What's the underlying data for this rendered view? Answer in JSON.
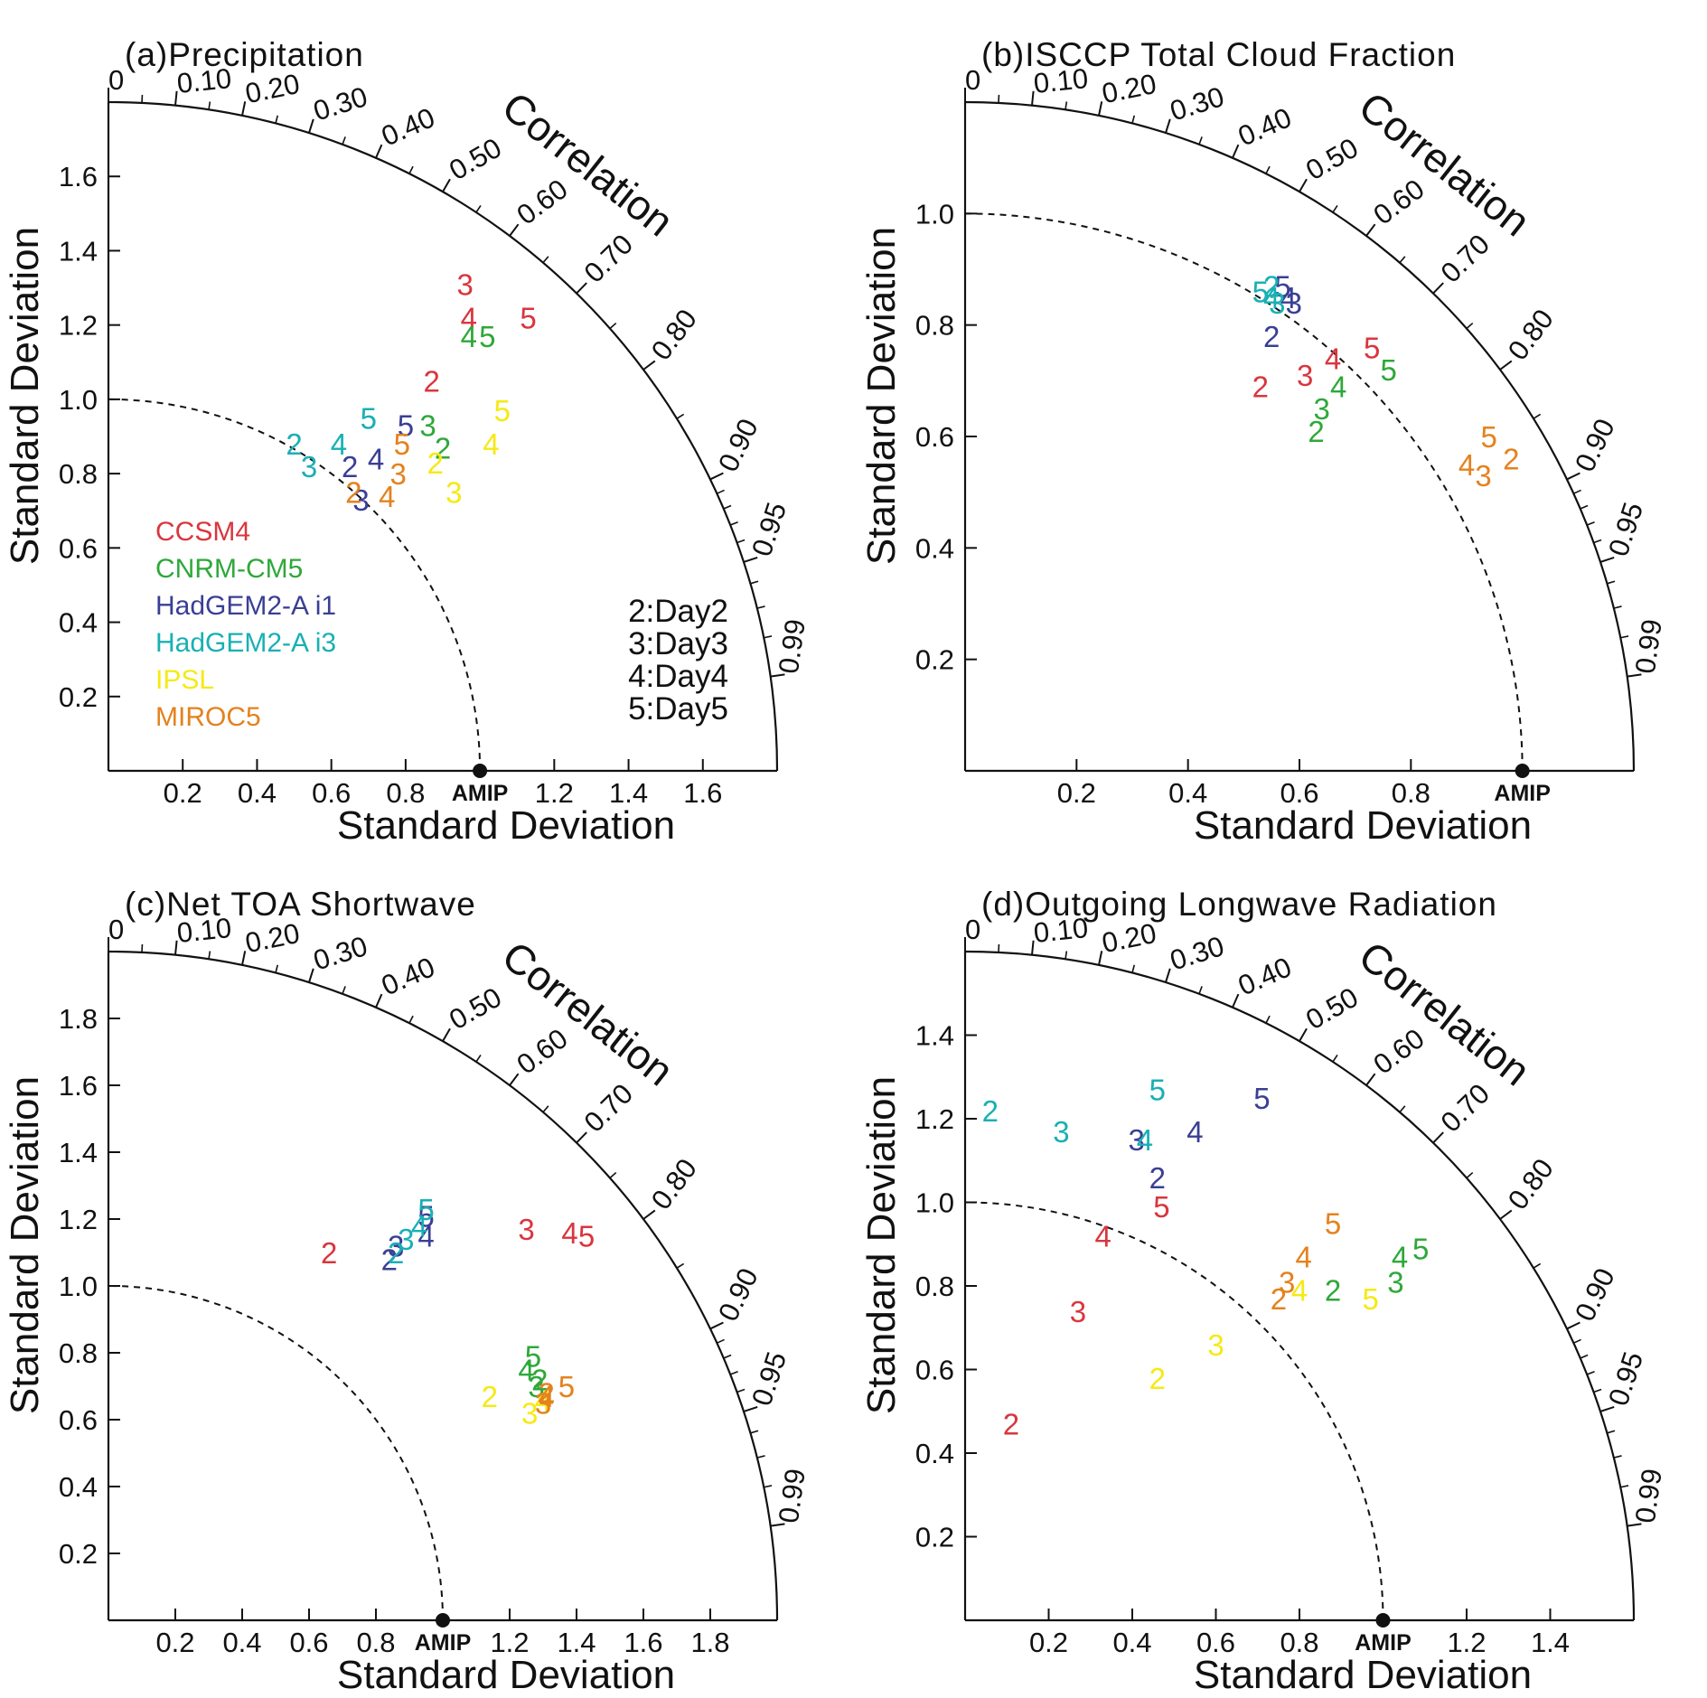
{
  "model_colors": {
    "CCSM4": "#d9363e",
    "CNRM-CM5": "#2ea83a",
    "HadGEM2-A i1": "#3a3f94",
    "HadGEM2-A i3": "#19b0b4",
    "IPSL": "#f5ea14",
    "MIROC5": "#e4821e"
  },
  "legend": {
    "models": [
      "CCSM4",
      "CNRM-CM5",
      "HadGEM2-A i1",
      "HadGEM2-A i3",
      "IPSL",
      "MIROC5"
    ],
    "days": [
      "2:Day2",
      "3:Day3",
      "4:Day4",
      "5:Day5"
    ]
  },
  "chart_data": [
    {
      "type": "scatter",
      "subtype": "taylor-diagram",
      "title": "(a)Precipitation",
      "xlabel": "Standard Deviation",
      "ylabel": "Standard Deviation",
      "arc_label": "Correlation",
      "reference_label": "AMIP",
      "reference_std": 1.0,
      "max_std": 1.8,
      "x_ticks": [
        "0.2",
        "0.4",
        "0.6",
        "0.8",
        "1.2",
        "1.4",
        "1.6"
      ],
      "y_ticks": [
        "0.2",
        "0.4",
        "0.6",
        "0.8",
        "1.0",
        "1.2",
        "1.4",
        "1.6"
      ],
      "correlation_ticks": [
        "0",
        "0.10",
        "0.20",
        "0.30",
        "0.40",
        "0.50",
        "0.60",
        "0.70",
        "0.80",
        "0.90",
        "0.95",
        "0.99"
      ],
      "show_legend": true,
      "points": [
        {
          "model": "CCSM4",
          "label": "2",
          "x": 0.87,
          "y": 1.05
        },
        {
          "model": "CCSM4",
          "label": "3",
          "x": 0.96,
          "y": 1.31
        },
        {
          "model": "CCSM4",
          "label": "4",
          "x": 0.97,
          "y": 1.22
        },
        {
          "model": "CCSM4",
          "label": "5",
          "x": 1.13,
          "y": 1.22
        },
        {
          "model": "CNRM-CM5",
          "label": "2",
          "x": 0.9,
          "y": 0.87
        },
        {
          "model": "CNRM-CM5",
          "label": "3",
          "x": 0.86,
          "y": 0.93
        },
        {
          "model": "CNRM-CM5",
          "label": "4",
          "x": 0.97,
          "y": 1.17
        },
        {
          "model": "CNRM-CM5",
          "label": "5",
          "x": 1.02,
          "y": 1.17
        },
        {
          "model": "HadGEM2-A i1",
          "label": "2",
          "x": 0.65,
          "y": 0.82
        },
        {
          "model": "HadGEM2-A i1",
          "label": "3",
          "x": 0.68,
          "y": 0.73
        },
        {
          "model": "HadGEM2-A i1",
          "label": "4",
          "x": 0.72,
          "y": 0.84
        },
        {
          "model": "HadGEM2-A i1",
          "label": "5",
          "x": 0.8,
          "y": 0.93
        },
        {
          "model": "HadGEM2-A i3",
          "label": "2",
          "x": 0.5,
          "y": 0.88
        },
        {
          "model": "HadGEM2-A i3",
          "label": "3",
          "x": 0.54,
          "y": 0.82
        },
        {
          "model": "HadGEM2-A i3",
          "label": "4",
          "x": 0.62,
          "y": 0.88
        },
        {
          "model": "HadGEM2-A i3",
          "label": "5",
          "x": 0.7,
          "y": 0.95
        },
        {
          "model": "IPSL",
          "label": "2",
          "x": 0.88,
          "y": 0.83
        },
        {
          "model": "IPSL",
          "label": "3",
          "x": 0.93,
          "y": 0.75
        },
        {
          "model": "IPSL",
          "label": "4",
          "x": 1.03,
          "y": 0.88
        },
        {
          "model": "IPSL",
          "label": "5",
          "x": 1.06,
          "y": 0.97
        },
        {
          "model": "MIROC5",
          "label": "2",
          "x": 0.66,
          "y": 0.75
        },
        {
          "model": "MIROC5",
          "label": "3",
          "x": 0.78,
          "y": 0.8
        },
        {
          "model": "MIROC5",
          "label": "4",
          "x": 0.75,
          "y": 0.74
        },
        {
          "model": "MIROC5",
          "label": "5",
          "x": 0.79,
          "y": 0.88
        }
      ]
    },
    {
      "type": "scatter",
      "subtype": "taylor-diagram",
      "title": "(b)ISCCP Total Cloud Fraction",
      "xlabel": "Standard Deviation",
      "ylabel": "Standard Deviation",
      "arc_label": "Correlation",
      "reference_label": "AMIP",
      "reference_std": 1.0,
      "max_std": 1.2,
      "x_ticks": [
        "0.2",
        "0.4",
        "0.6",
        "0.8"
      ],
      "y_ticks": [
        "0.2",
        "0.4",
        "0.6",
        "0.8",
        "1.0"
      ],
      "correlation_ticks": [
        "0",
        "0.10",
        "0.20",
        "0.30",
        "0.40",
        "0.50",
        "0.60",
        "0.70",
        "0.80",
        "0.90",
        "0.95",
        "0.99"
      ],
      "show_legend": false,
      "points": [
        {
          "model": "CCSM4",
          "label": "2",
          "x": 0.53,
          "y": 0.69
        },
        {
          "model": "CCSM4",
          "label": "3",
          "x": 0.61,
          "y": 0.71
        },
        {
          "model": "CCSM4",
          "label": "4",
          "x": 0.66,
          "y": 0.74
        },
        {
          "model": "CCSM4",
          "label": "5",
          "x": 0.73,
          "y": 0.76
        },
        {
          "model": "CNRM-CM5",
          "label": "2",
          "x": 0.63,
          "y": 0.61
        },
        {
          "model": "CNRM-CM5",
          "label": "3",
          "x": 0.64,
          "y": 0.65
        },
        {
          "model": "CNRM-CM5",
          "label": "4",
          "x": 0.67,
          "y": 0.69
        },
        {
          "model": "CNRM-CM5",
          "label": "5",
          "x": 0.76,
          "y": 0.72
        },
        {
          "model": "HadGEM2-A i1",
          "label": "2",
          "x": 0.55,
          "y": 0.78
        },
        {
          "model": "HadGEM2-A i1",
          "label": "3",
          "x": 0.59,
          "y": 0.84
        },
        {
          "model": "HadGEM2-A i1",
          "label": "4",
          "x": 0.58,
          "y": 0.85
        },
        {
          "model": "HadGEM2-A i1",
          "label": "5",
          "x": 0.57,
          "y": 0.87
        },
        {
          "model": "HadGEM2-A i3",
          "label": "2",
          "x": 0.55,
          "y": 0.87
        },
        {
          "model": "HadGEM2-A i3",
          "label": "3",
          "x": 0.56,
          "y": 0.84
        },
        {
          "model": "HadGEM2-A i3",
          "label": "4",
          "x": 0.55,
          "y": 0.85
        },
        {
          "model": "HadGEM2-A i3",
          "label": "5",
          "x": 0.53,
          "y": 0.86
        },
        {
          "model": "MIROC5",
          "label": "2",
          "x": 0.98,
          "y": 0.56
        },
        {
          "model": "MIROC5",
          "label": "3",
          "x": 0.93,
          "y": 0.53
        },
        {
          "model": "MIROC5",
          "label": "4",
          "x": 0.9,
          "y": 0.55
        },
        {
          "model": "MIROC5",
          "label": "5",
          "x": 0.94,
          "y": 0.6
        }
      ]
    },
    {
      "type": "scatter",
      "subtype": "taylor-diagram",
      "title": "(c)Net TOA Shortwave",
      "xlabel": "Standard Deviation",
      "ylabel": "Standard Deviation",
      "arc_label": "Correlation",
      "reference_label": "AMIP",
      "reference_std": 1.0,
      "max_std": 2.0,
      "x_ticks": [
        "0.2",
        "0.4",
        "0.6",
        "0.8",
        "1.2",
        "1.4",
        "1.6",
        "1.8"
      ],
      "y_ticks": [
        "0.2",
        "0.4",
        "0.6",
        "0.8",
        "1.0",
        "1.2",
        "1.4",
        "1.6",
        "1.8"
      ],
      "correlation_ticks": [
        "0",
        "0.10",
        "0.20",
        "0.30",
        "0.40",
        "0.50",
        "0.60",
        "0.70",
        "0.80",
        "0.90",
        "0.95",
        "0.99"
      ],
      "show_legend": false,
      "points": [
        {
          "model": "CCSM4",
          "label": "2",
          "x": 0.66,
          "y": 1.1
        },
        {
          "model": "CCSM4",
          "label": "3",
          "x": 1.25,
          "y": 1.17
        },
        {
          "model": "CCSM4",
          "label": "4",
          "x": 1.38,
          "y": 1.16
        },
        {
          "model": "CCSM4",
          "label": "5",
          "x": 1.43,
          "y": 1.15
        },
        {
          "model": "CNRM-CM5",
          "label": "2",
          "x": 1.29,
          "y": 0.72
        },
        {
          "model": "CNRM-CM5",
          "label": "3",
          "x": 1.28,
          "y": 0.7
        },
        {
          "model": "CNRM-CM5",
          "label": "4",
          "x": 1.25,
          "y": 0.75
        },
        {
          "model": "CNRM-CM5",
          "label": "5",
          "x": 1.27,
          "y": 0.79
        },
        {
          "model": "HadGEM2-A i1",
          "label": "2",
          "x": 0.84,
          "y": 1.08
        },
        {
          "model": "HadGEM2-A i1",
          "label": "3",
          "x": 0.86,
          "y": 1.12
        },
        {
          "model": "HadGEM2-A i1",
          "label": "4",
          "x": 0.95,
          "y": 1.15
        },
        {
          "model": "HadGEM2-A i1",
          "label": "5",
          "x": 0.95,
          "y": 1.21
        },
        {
          "model": "HadGEM2-A i3",
          "label": "2",
          "x": 0.86,
          "y": 1.1
        },
        {
          "model": "HadGEM2-A i3",
          "label": "3",
          "x": 0.89,
          "y": 1.14
        },
        {
          "model": "HadGEM2-A i3",
          "label": "4",
          "x": 0.93,
          "y": 1.18
        },
        {
          "model": "HadGEM2-A i3",
          "label": "5",
          "x": 0.95,
          "y": 1.23
        },
        {
          "model": "IPSL",
          "label": "2",
          "x": 1.14,
          "y": 0.67
        },
        {
          "model": "IPSL",
          "label": "3",
          "x": 1.26,
          "y": 0.62
        },
        {
          "model": "IPSL",
          "label": "4",
          "x": 1.3,
          "y": 0.66
        },
        {
          "model": "MIROC5",
          "label": "2",
          "x": 1.31,
          "y": 0.68
        },
        {
          "model": "MIROC5",
          "label": "3",
          "x": 1.3,
          "y": 0.65
        },
        {
          "model": "MIROC5",
          "label": "4",
          "x": 1.31,
          "y": 0.67
        },
        {
          "model": "MIROC5",
          "label": "5",
          "x": 1.37,
          "y": 0.7
        }
      ]
    },
    {
      "type": "scatter",
      "subtype": "taylor-diagram",
      "title": "(d)Outgoing Longwave Radiation",
      "xlabel": "Standard Deviation",
      "ylabel": "Standard Deviation",
      "arc_label": "Correlation",
      "reference_label": "AMIP",
      "reference_std": 1.0,
      "max_std": 1.6,
      "x_ticks": [
        "0.2",
        "0.4",
        "0.6",
        "0.8",
        "1.2",
        "1.4"
      ],
      "y_ticks": [
        "0.2",
        "0.4",
        "0.6",
        "0.8",
        "1.0",
        "1.2",
        "1.4"
      ],
      "correlation_ticks": [
        "0",
        "0.10",
        "0.20",
        "0.30",
        "0.40",
        "0.50",
        "0.60",
        "0.70",
        "0.80",
        "0.90",
        "0.95",
        "0.99"
      ],
      "show_legend": false,
      "points": [
        {
          "model": "CCSM4",
          "label": "2",
          "x": 0.11,
          "y": 0.47
        },
        {
          "model": "CCSM4",
          "label": "3",
          "x": 0.27,
          "y": 0.74
        },
        {
          "model": "CCSM4",
          "label": "4",
          "x": 0.33,
          "y": 0.92
        },
        {
          "model": "CCSM4",
          "label": "5",
          "x": 0.47,
          "y": 0.99
        },
        {
          "model": "CNRM-CM5",
          "label": "2",
          "x": 0.88,
          "y": 0.79
        },
        {
          "model": "CNRM-CM5",
          "label": "3",
          "x": 1.03,
          "y": 0.81
        },
        {
          "model": "CNRM-CM5",
          "label": "4",
          "x": 1.04,
          "y": 0.87
        },
        {
          "model": "CNRM-CM5",
          "label": "5",
          "x": 1.09,
          "y": 0.89
        },
        {
          "model": "HadGEM2-A i1",
          "label": "2",
          "x": 0.46,
          "y": 1.06
        },
        {
          "model": "HadGEM2-A i1",
          "label": "3",
          "x": 0.41,
          "y": 1.15
        },
        {
          "model": "HadGEM2-A i1",
          "label": "4",
          "x": 0.55,
          "y": 1.17
        },
        {
          "model": "HadGEM2-A i1",
          "label": "5",
          "x": 0.71,
          "y": 1.25
        },
        {
          "model": "HadGEM2-A i3",
          "label": "2",
          "x": 0.06,
          "y": 1.22
        },
        {
          "model": "HadGEM2-A i3",
          "label": "3",
          "x": 0.23,
          "y": 1.17
        },
        {
          "model": "HadGEM2-A i3",
          "label": "4",
          "x": 0.43,
          "y": 1.15
        },
        {
          "model": "HadGEM2-A i3",
          "label": "5",
          "x": 0.46,
          "y": 1.27
        },
        {
          "model": "IPSL",
          "label": "2",
          "x": 0.46,
          "y": 0.58
        },
        {
          "model": "IPSL",
          "label": "3",
          "x": 0.6,
          "y": 0.66
        },
        {
          "model": "IPSL",
          "label": "4",
          "x": 0.8,
          "y": 0.79
        },
        {
          "model": "IPSL",
          "label": "5",
          "x": 0.97,
          "y": 0.77
        },
        {
          "model": "MIROC5",
          "label": "2",
          "x": 0.75,
          "y": 0.77
        },
        {
          "model": "MIROC5",
          "label": "3",
          "x": 0.77,
          "y": 0.81
        },
        {
          "model": "MIROC5",
          "label": "4",
          "x": 0.81,
          "y": 0.87
        },
        {
          "model": "MIROC5",
          "label": "5",
          "x": 0.88,
          "y": 0.95
        }
      ]
    }
  ]
}
